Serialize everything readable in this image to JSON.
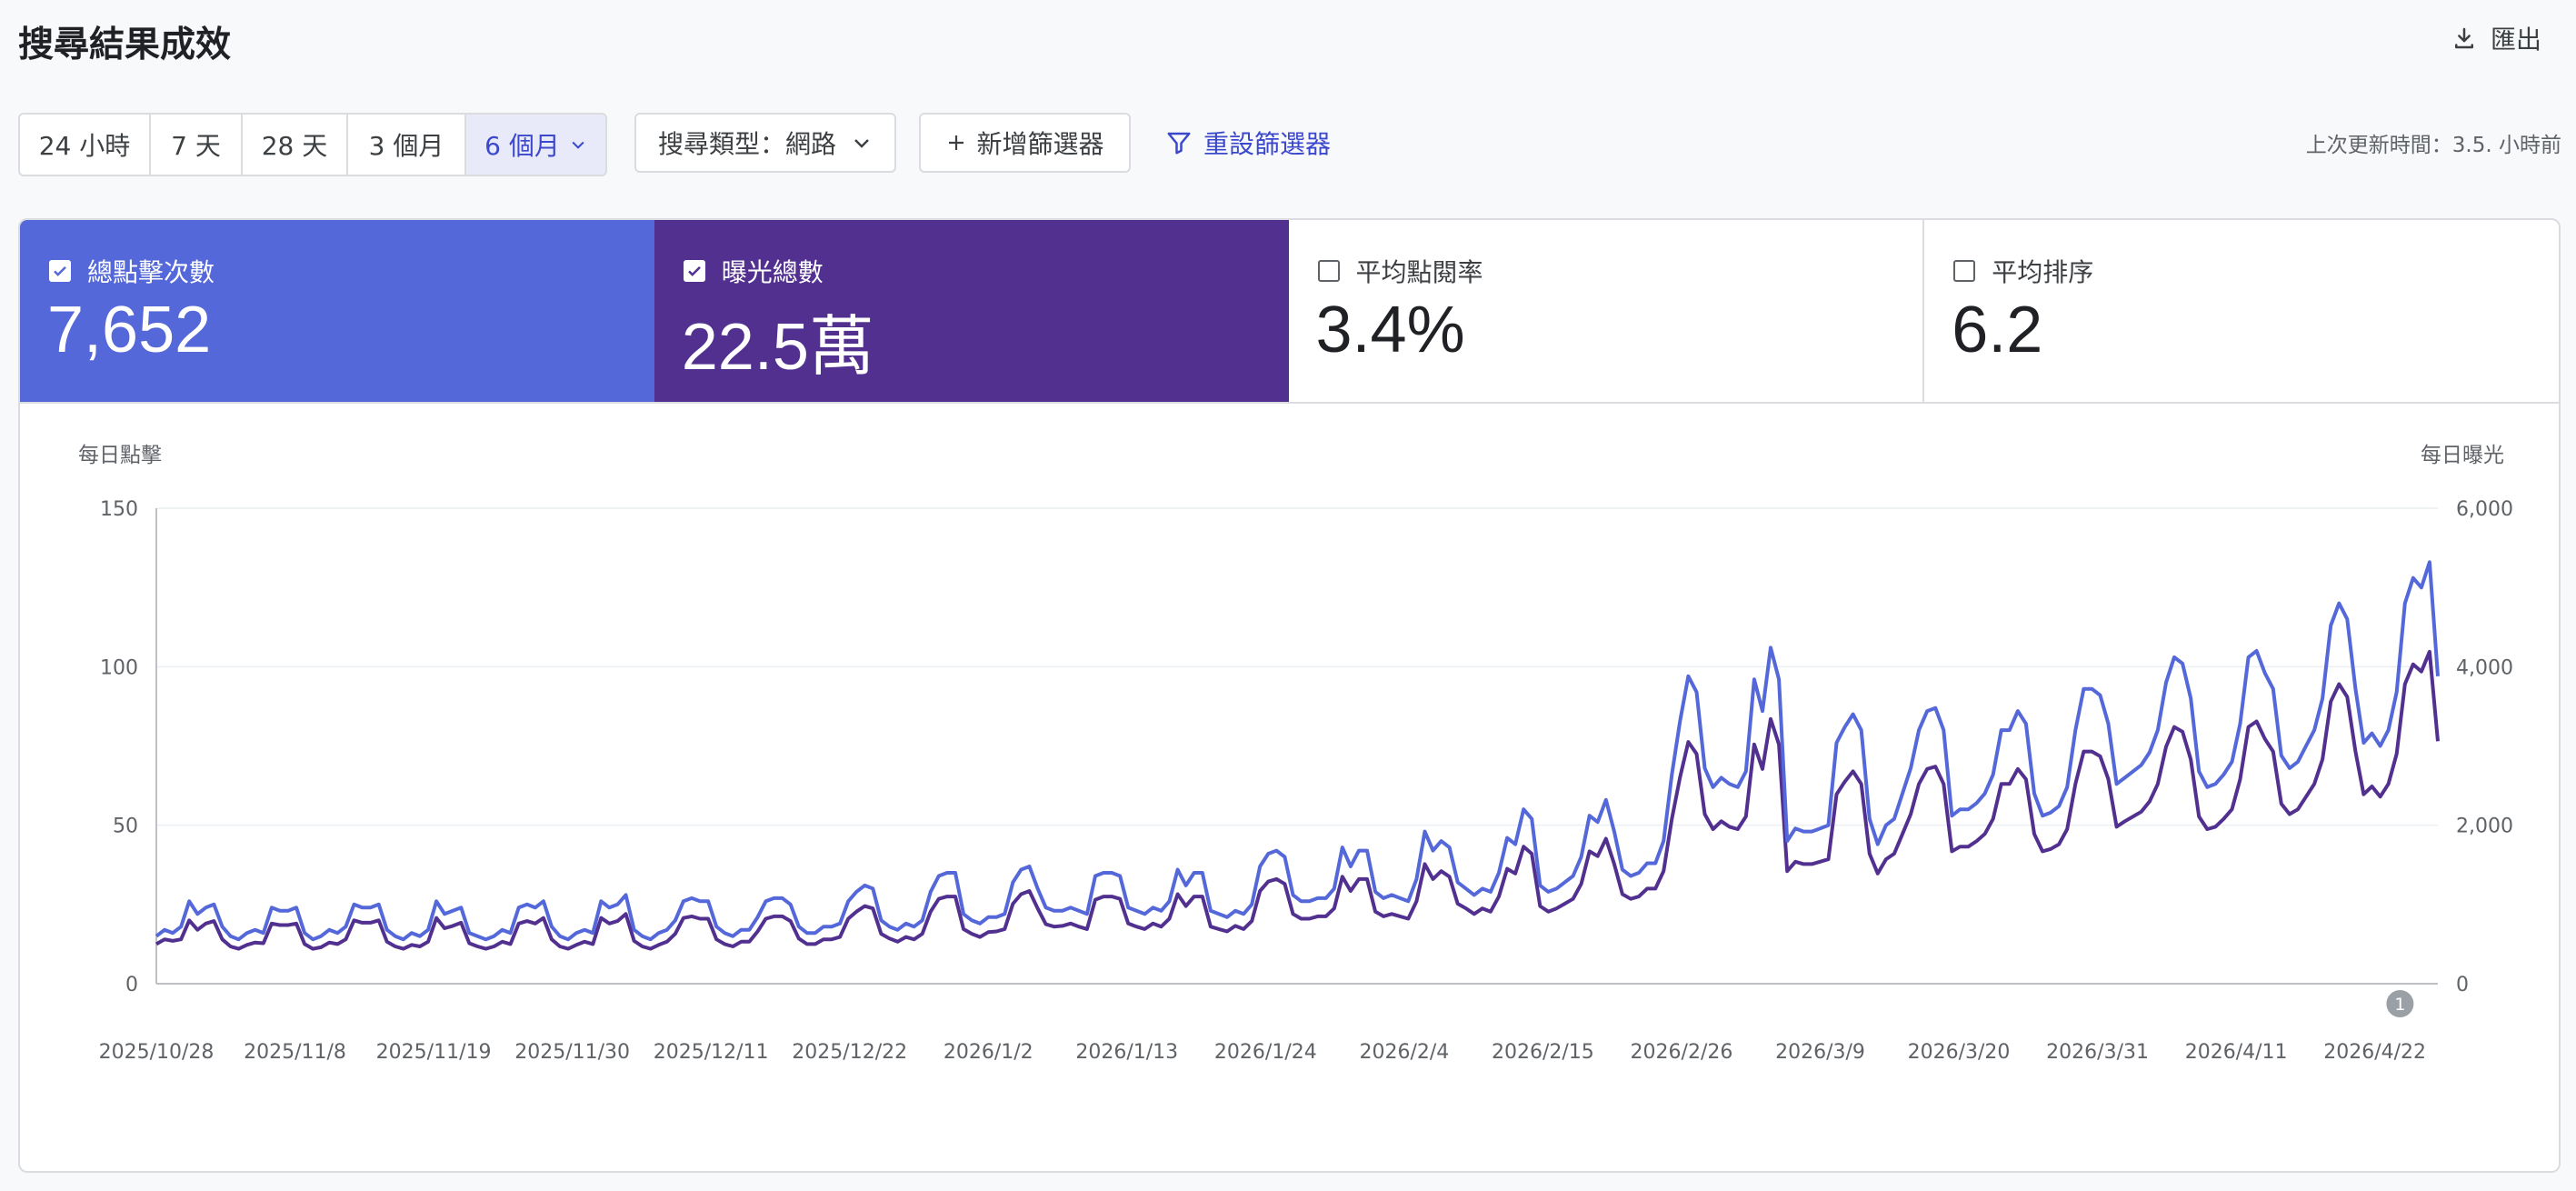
{
  "header": {
    "title": "搜尋結果成效",
    "export_label": "匯出"
  },
  "toolbar": {
    "ranges": [
      "24 小時",
      "7 天",
      "28 天",
      "3 個月",
      "6 個月"
    ],
    "active_range": "6 個月",
    "search_type": "搜尋類型：網路",
    "add_filter": "新增篩選器",
    "reset_filter": "重設篩選器",
    "last_updated": "上次更新時間：3.5. 小時前"
  },
  "metrics": [
    {
      "label": "總點擊次數",
      "value": "7,652",
      "checked": true,
      "color": "#5468d9"
    },
    {
      "label": "曝光總數",
      "value": "22.5萬",
      "checked": true,
      "color": "#523090"
    },
    {
      "label": "平均點閱率",
      "value": "3.4%",
      "checked": false,
      "color": "#ffffff"
    },
    {
      "label": "平均排序",
      "value": "6.2",
      "checked": false,
      "color": "#ffffff"
    }
  ],
  "chart_data": {
    "type": "line",
    "left_axis_title": "每日點擊",
    "right_axis_title": "每日曝光",
    "ylim_left": [
      0,
      150
    ],
    "ylim_right": [
      0,
      6000
    ],
    "yticks_left": [
      "0",
      "50",
      "100",
      "150"
    ],
    "yticks_right": [
      "0",
      "2,000",
      "4,000",
      "6,000"
    ],
    "x_tick_labels": [
      "2025/10/28",
      "2025/11/8",
      "2025/11/19",
      "2025/11/30",
      "2025/12/11",
      "2025/12/22",
      "2026/1/2",
      "2026/1/13",
      "2026/1/24",
      "2026/2/4",
      "2026/2/15",
      "2026/2/26",
      "2026/3/9",
      "2026/3/20",
      "2026/3/31",
      "2026/4/11",
      "2026/4/22"
    ],
    "x_start": "2025/10/28",
    "x_end": "2026/4/27",
    "annotation": {
      "label": "1",
      "date": "2026/4/24"
    },
    "grid": true,
    "series": [
      {
        "color": "#5468d9",
        "axis": "left",
        "values": [
          15,
          17,
          16,
          18,
          26,
          22,
          24,
          25,
          18,
          15,
          14,
          16,
          17,
          16,
          24,
          23,
          23,
          24,
          16,
          14,
          15,
          17,
          16,
          18,
          25,
          24,
          24,
          25,
          17,
          15,
          14,
          16,
          15,
          17,
          26,
          22,
          23,
          24,
          16,
          15,
          14,
          15,
          17,
          16,
          24,
          25,
          24,
          26,
          18,
          15,
          14,
          16,
          17,
          16,
          26,
          24,
          25,
          28,
          17,
          15,
          14,
          16,
          17,
          20,
          26,
          27,
          26,
          26,
          18,
          16,
          15,
          17,
          17,
          21,
          26,
          27,
          27,
          25,
          18,
          16,
          16,
          18,
          18,
          19,
          26,
          29,
          31,
          30,
          20,
          18,
          17,
          19,
          18,
          20,
          29,
          34,
          35,
          35,
          22,
          20,
          19,
          21,
          21,
          22,
          32,
          36,
          37,
          30,
          24,
          23,
          23,
          24,
          23,
          22,
          34,
          35,
          35,
          34,
          24,
          23,
          22,
          24,
          23,
          26,
          36,
          31,
          35,
          35,
          23,
          22,
          21,
          23,
          22,
          25,
          37,
          41,
          42,
          40,
          28,
          26,
          26,
          27,
          27,
          30,
          43,
          37,
          42,
          42,
          29,
          27,
          28,
          27,
          26,
          33,
          48,
          42,
          45,
          43,
          32,
          30,
          28,
          30,
          29,
          35,
          46,
          44,
          55,
          52,
          31,
          29,
          30,
          32,
          34,
          40,
          53,
          51,
          58,
          48,
          36,
          34,
          35,
          38,
          38,
          45,
          66,
          83,
          97,
          92,
          68,
          62,
          65,
          63,
          62,
          67,
          96,
          86,
          106,
          96,
          45,
          49,
          48,
          48,
          49,
          50,
          76,
          81,
          85,
          80,
          52,
          44,
          50,
          52,
          60,
          68,
          80,
          86,
          87,
          80,
          53,
          55,
          55,
          57,
          60,
          66,
          80,
          80,
          86,
          82,
          60,
          53,
          54,
          56,
          62,
          80,
          93,
          93,
          91,
          82,
          63,
          65,
          67,
          69,
          73,
          80,
          95,
          103,
          101,
          90,
          67,
          62,
          63,
          66,
          70,
          82,
          103,
          105,
          98,
          93,
          72,
          68,
          70,
          75,
          80,
          90,
          113,
          120,
          115,
          93,
          76,
          79,
          75,
          80,
          92,
          120,
          128,
          125,
          133,
          97
        ]
      },
      {
        "color": "#523090",
        "axis": "right",
        "values": [
          500,
          560,
          540,
          560,
          800,
          680,
          760,
          790,
          560,
          470,
          440,
          490,
          520,
          510,
          760,
          740,
          740,
          760,
          500,
          440,
          460,
          520,
          500,
          560,
          800,
          770,
          770,
          800,
          530,
          470,
          440,
          490,
          470,
          530,
          830,
          700,
          730,
          770,
          510,
          470,
          440,
          470,
          530,
          500,
          760,
          790,
          760,
          830,
          560,
          470,
          440,
          490,
          530,
          500,
          830,
          760,
          790,
          880,
          540,
          470,
          440,
          490,
          530,
          630,
          830,
          850,
          820,
          820,
          560,
          500,
          470,
          530,
          530,
          660,
          820,
          850,
          850,
          790,
          570,
          500,
          500,
          560,
          560,
          590,
          820,
          910,
          980,
          950,
          630,
          570,
          530,
          590,
          560,
          630,
          910,
          1070,
          1100,
          1100,
          690,
          630,
          590,
          650,
          660,
          690,
          1010,
          1130,
          1170,
          950,
          750,
          720,
          730,
          760,
          720,
          690,
          1060,
          1100,
          1100,
          1070,
          760,
          720,
          690,
          760,
          720,
          820,
          1130,
          980,
          1100,
          1100,
          720,
          690,
          660,
          730,
          690,
          790,
          1170,
          1290,
          1320,
          1260,
          880,
          820,
          820,
          850,
          850,
          950,
          1350,
          1170,
          1320,
          1320,
          910,
          850,
          880,
          850,
          820,
          1040,
          1510,
          1320,
          1420,
          1350,
          1010,
          950,
          880,
          950,
          910,
          1100,
          1450,
          1390,
          1730,
          1640,
          980,
          910,
          950,
          1010,
          1070,
          1260,
          1670,
          1610,
          1830,
          1510,
          1130,
          1070,
          1100,
          1200,
          1200,
          1420,
          2080,
          2610,
          3050,
          2900,
          2140,
          1950,
          2050,
          1980,
          1950,
          2110,
          3020,
          2710,
          3340,
          3020,
          1420,
          1540,
          1510,
          1510,
          1540,
          1570,
          2390,
          2550,
          2680,
          2520,
          1640,
          1390,
          1570,
          1640,
          1890,
          2140,
          2520,
          2710,
          2740,
          2520,
          1670,
          1730,
          1730,
          1800,
          1890,
          2080,
          2520,
          2520,
          2710,
          2580,
          1890,
          1670,
          1700,
          1760,
          1950,
          2520,
          2930,
          2930,
          2870,
          2580,
          1980,
          2050,
          2110,
          2170,
          2300,
          2520,
          2990,
          3240,
          3180,
          2830,
          2110,
          1950,
          1980,
          2080,
          2200,
          2580,
          3240,
          3310,
          3090,
          2930,
          2270,
          2140,
          2200,
          2360,
          2520,
          2830,
          3560,
          3780,
          3620,
          2930,
          2390,
          2490,
          2360,
          2520,
          2900,
          3780,
          4030,
          3940,
          4190,
          3060
        ]
      }
    ]
  }
}
